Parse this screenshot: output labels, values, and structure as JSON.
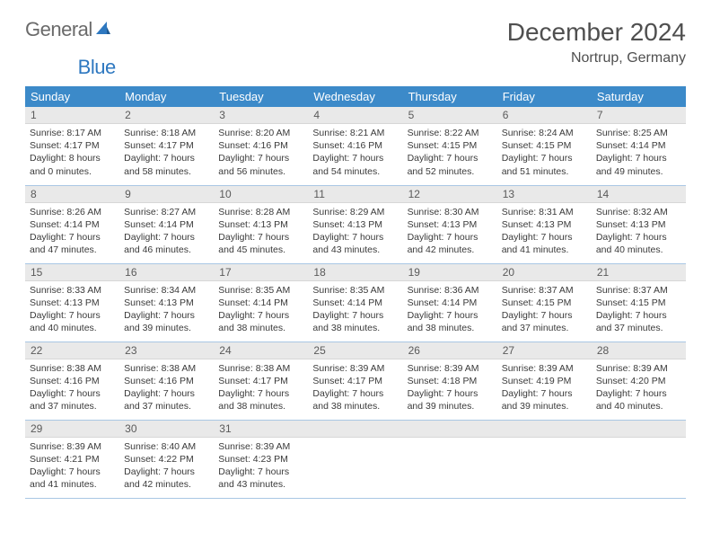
{
  "brand": {
    "word1": "General",
    "word2": "Blue"
  },
  "title": "December 2024",
  "location": "Nortrup, Germany",
  "colors": {
    "header_bg": "#3c8ac9",
    "header_text": "#ffffff",
    "daynum_bg": "#e9e9e9",
    "row_border": "#a9c7e4",
    "title_color": "#4f4f4f",
    "brand_gray": "#6a6a6a",
    "brand_blue": "#2e78c0"
  },
  "weekdays": [
    "Sunday",
    "Monday",
    "Tuesday",
    "Wednesday",
    "Thursday",
    "Friday",
    "Saturday"
  ],
  "days": [
    {
      "n": "1",
      "sunrise": "8:17 AM",
      "sunset": "4:17 PM",
      "daylight": "8 hours and 0 minutes."
    },
    {
      "n": "2",
      "sunrise": "8:18 AM",
      "sunset": "4:17 PM",
      "daylight": "7 hours and 58 minutes."
    },
    {
      "n": "3",
      "sunrise": "8:20 AM",
      "sunset": "4:16 PM",
      "daylight": "7 hours and 56 minutes."
    },
    {
      "n": "4",
      "sunrise": "8:21 AM",
      "sunset": "4:16 PM",
      "daylight": "7 hours and 54 minutes."
    },
    {
      "n": "5",
      "sunrise": "8:22 AM",
      "sunset": "4:15 PM",
      "daylight": "7 hours and 52 minutes."
    },
    {
      "n": "6",
      "sunrise": "8:24 AM",
      "sunset": "4:15 PM",
      "daylight": "7 hours and 51 minutes."
    },
    {
      "n": "7",
      "sunrise": "8:25 AM",
      "sunset": "4:14 PM",
      "daylight": "7 hours and 49 minutes."
    },
    {
      "n": "8",
      "sunrise": "8:26 AM",
      "sunset": "4:14 PM",
      "daylight": "7 hours and 47 minutes."
    },
    {
      "n": "9",
      "sunrise": "8:27 AM",
      "sunset": "4:14 PM",
      "daylight": "7 hours and 46 minutes."
    },
    {
      "n": "10",
      "sunrise": "8:28 AM",
      "sunset": "4:13 PM",
      "daylight": "7 hours and 45 minutes."
    },
    {
      "n": "11",
      "sunrise": "8:29 AM",
      "sunset": "4:13 PM",
      "daylight": "7 hours and 43 minutes."
    },
    {
      "n": "12",
      "sunrise": "8:30 AM",
      "sunset": "4:13 PM",
      "daylight": "7 hours and 42 minutes."
    },
    {
      "n": "13",
      "sunrise": "8:31 AM",
      "sunset": "4:13 PM",
      "daylight": "7 hours and 41 minutes."
    },
    {
      "n": "14",
      "sunrise": "8:32 AM",
      "sunset": "4:13 PM",
      "daylight": "7 hours and 40 minutes."
    },
    {
      "n": "15",
      "sunrise": "8:33 AM",
      "sunset": "4:13 PM",
      "daylight": "7 hours and 40 minutes."
    },
    {
      "n": "16",
      "sunrise": "8:34 AM",
      "sunset": "4:13 PM",
      "daylight": "7 hours and 39 minutes."
    },
    {
      "n": "17",
      "sunrise": "8:35 AM",
      "sunset": "4:14 PM",
      "daylight": "7 hours and 38 minutes."
    },
    {
      "n": "18",
      "sunrise": "8:35 AM",
      "sunset": "4:14 PM",
      "daylight": "7 hours and 38 minutes."
    },
    {
      "n": "19",
      "sunrise": "8:36 AM",
      "sunset": "4:14 PM",
      "daylight": "7 hours and 38 minutes."
    },
    {
      "n": "20",
      "sunrise": "8:37 AM",
      "sunset": "4:15 PM",
      "daylight": "7 hours and 37 minutes."
    },
    {
      "n": "21",
      "sunrise": "8:37 AM",
      "sunset": "4:15 PM",
      "daylight": "7 hours and 37 minutes."
    },
    {
      "n": "22",
      "sunrise": "8:38 AM",
      "sunset": "4:16 PM",
      "daylight": "7 hours and 37 minutes."
    },
    {
      "n": "23",
      "sunrise": "8:38 AM",
      "sunset": "4:16 PM",
      "daylight": "7 hours and 37 minutes."
    },
    {
      "n": "24",
      "sunrise": "8:38 AM",
      "sunset": "4:17 PM",
      "daylight": "7 hours and 38 minutes."
    },
    {
      "n": "25",
      "sunrise": "8:39 AM",
      "sunset": "4:17 PM",
      "daylight": "7 hours and 38 minutes."
    },
    {
      "n": "26",
      "sunrise": "8:39 AM",
      "sunset": "4:18 PM",
      "daylight": "7 hours and 39 minutes."
    },
    {
      "n": "27",
      "sunrise": "8:39 AM",
      "sunset": "4:19 PM",
      "daylight": "7 hours and 39 minutes."
    },
    {
      "n": "28",
      "sunrise": "8:39 AM",
      "sunset": "4:20 PM",
      "daylight": "7 hours and 40 minutes."
    },
    {
      "n": "29",
      "sunrise": "8:39 AM",
      "sunset": "4:21 PM",
      "daylight": "7 hours and 41 minutes."
    },
    {
      "n": "30",
      "sunrise": "8:40 AM",
      "sunset": "4:22 PM",
      "daylight": "7 hours and 42 minutes."
    },
    {
      "n": "31",
      "sunrise": "8:39 AM",
      "sunset": "4:23 PM",
      "daylight": "7 hours and 43 minutes."
    }
  ],
  "labels": {
    "sunrise": "Sunrise:",
    "sunset": "Sunset:",
    "daylight": "Daylight:"
  },
  "layout": {
    "first_weekday_index": 0,
    "weeks": 5,
    "cols": 7
  }
}
